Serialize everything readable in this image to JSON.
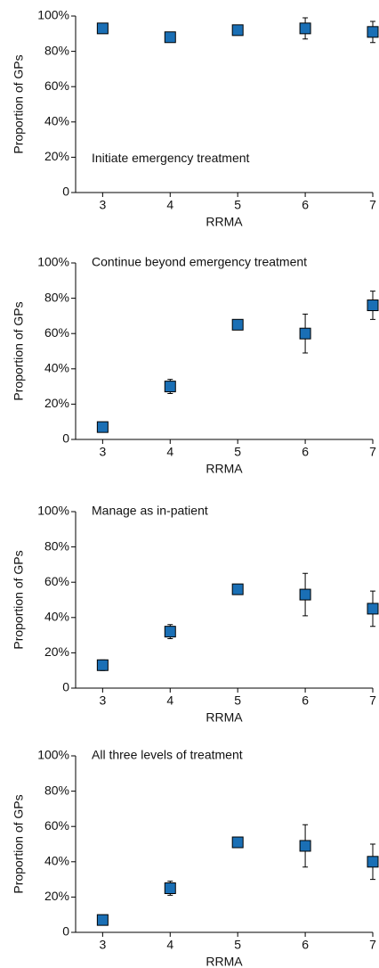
{
  "chart_data": [
    {
      "type": "scatter",
      "annotation": "Initiate emergency treatment",
      "xlabel": "RRMA",
      "ylabel": "Proportion of GPs",
      "x": [
        3,
        4,
        5,
        6,
        7
      ],
      "values": [
        93,
        88,
        92,
        93,
        91
      ],
      "errors": [
        2,
        2,
        2,
        6,
        6
      ],
      "color": "#1a6fb5",
      "xlim": [
        2.6,
        7
      ],
      "xticks": [
        3,
        4,
        5,
        6,
        7
      ],
      "ylim": [
        0,
        100
      ],
      "yticks": [
        0,
        {
          "value": 20,
          "label": "20%"
        },
        {
          "value": 40,
          "label": "40%"
        },
        {
          "value": 60,
          "label": "60%"
        },
        {
          "value": 80,
          "label": "80%"
        },
        {
          "value": 100,
          "label": "100%"
        }
      ]
    },
    {
      "type": "scatter",
      "annotation": "Continue beyond emergency treatment",
      "xlabel": "RRMA",
      "ylabel": "Proportion of GPs",
      "x": [
        3,
        4,
        5,
        6,
        7
      ],
      "values": [
        7,
        30,
        65,
        60,
        76
      ],
      "errors": [
        1,
        4,
        1,
        11,
        8
      ],
      "color": "#1a6fb5",
      "xlim": [
        2.6,
        7
      ],
      "xticks": [
        3,
        4,
        5,
        6,
        7
      ],
      "ylim": [
        0,
        100
      ],
      "yticks": [
        0,
        {
          "value": 20,
          "label": "20%"
        },
        {
          "value": 40,
          "label": "40%"
        },
        {
          "value": 60,
          "label": "60%"
        },
        {
          "value": 80,
          "label": "80%"
        },
        {
          "value": 100,
          "label": "100%"
        }
      ]
    },
    {
      "type": "scatter",
      "annotation": "Manage as in-patient",
      "xlabel": "RRMA",
      "ylabel": "Proportion of GPs",
      "x": [
        3,
        4,
        5,
        6,
        7
      ],
      "values": [
        13,
        32,
        56,
        53,
        45
      ],
      "errors": [
        3,
        4,
        1,
        12,
        10
      ],
      "color": "#1a6fb5",
      "xlim": [
        2.6,
        7
      ],
      "xticks": [
        3,
        4,
        5,
        6,
        7
      ],
      "ylim": [
        0,
        100
      ],
      "yticks": [
        0,
        {
          "value": 20,
          "label": "20%"
        },
        {
          "value": 40,
          "label": "40%"
        },
        {
          "value": 60,
          "label": "60%"
        },
        {
          "value": 80,
          "label": "80%"
        },
        {
          "value": 100,
          "label": "100%"
        }
      ]
    },
    {
      "type": "scatter",
      "annotation": "All three levels of treatment",
      "xlabel": "RRMA",
      "ylabel": "Proportion of GPs",
      "x": [
        3,
        4,
        5,
        6,
        7
      ],
      "values": [
        7,
        25,
        51,
        49,
        40
      ],
      "errors": [
        1,
        4,
        1,
        12,
        10
      ],
      "color": "#1a6fb5",
      "xlim": [
        2.6,
        7
      ],
      "xticks": [
        3,
        4,
        5,
        6,
        7
      ],
      "ylim": [
        0,
        100
      ],
      "yticks": [
        0,
        {
          "value": 20,
          "label": "20%"
        },
        {
          "value": 40,
          "label": "40%"
        },
        {
          "value": 60,
          "label": "60%"
        },
        {
          "value": 80,
          "label": "80%"
        },
        {
          "value": 100,
          "label": "100%"
        }
      ]
    }
  ]
}
